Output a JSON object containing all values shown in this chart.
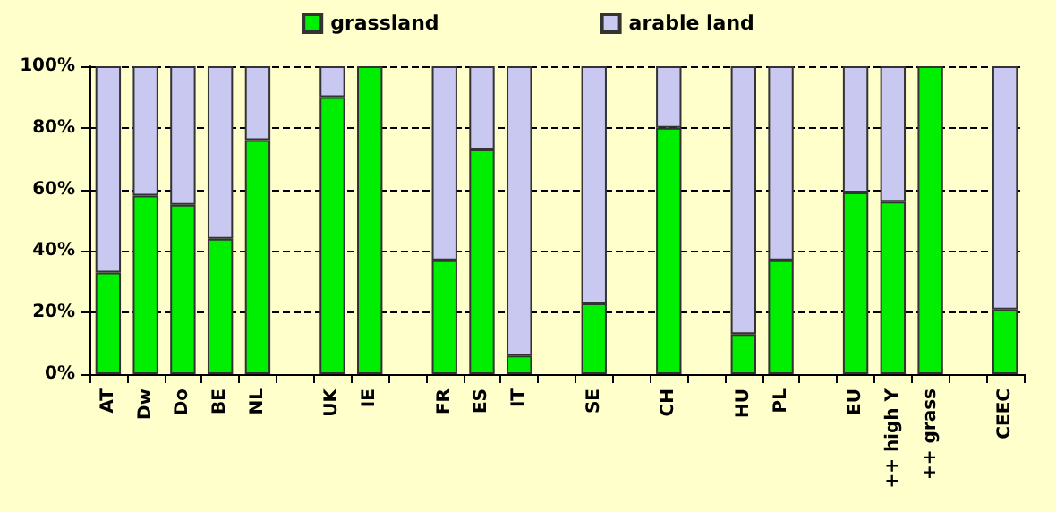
{
  "chart_data": {
    "type": "bar",
    "stacked": true,
    "categories": [
      "AT",
      "Dw",
      "Do",
      "BE",
      "NL",
      null,
      "UK",
      "IE",
      null,
      "FR",
      "ES",
      "IT",
      null,
      "SE",
      null,
      "CH",
      null,
      "HU",
      "PL",
      null,
      "EU",
      "++ high Y",
      "++ grass",
      null,
      "CEEC"
    ],
    "series": [
      {
        "name": "grassland",
        "color": "#00ee00",
        "values": [
          33,
          58,
          55,
          44,
          76,
          null,
          90,
          100,
          null,
          37,
          73,
          6,
          null,
          23,
          null,
          80,
          null,
          13,
          37,
          null,
          59,
          56,
          100,
          null,
          21
        ]
      },
      {
        "name": "arable land",
        "color": "#c8c8f0",
        "values": [
          67,
          42,
          45,
          56,
          24,
          null,
          10,
          0,
          null,
          63,
          27,
          94,
          null,
          77,
          null,
          20,
          null,
          87,
          63,
          null,
          41,
          44,
          0,
          null,
          79
        ]
      }
    ],
    "ylim": [
      0,
      100
    ],
    "yticks": [
      {
        "value": 0,
        "label": "0%"
      },
      {
        "value": 20,
        "label": "20%"
      },
      {
        "value": 40,
        "label": "40%"
      },
      {
        "value": 60,
        "label": "60%"
      },
      {
        "value": 80,
        "label": "80%"
      },
      {
        "value": 100,
        "label": "100%"
      }
    ],
    "grid": "y",
    "legend": "top"
  }
}
